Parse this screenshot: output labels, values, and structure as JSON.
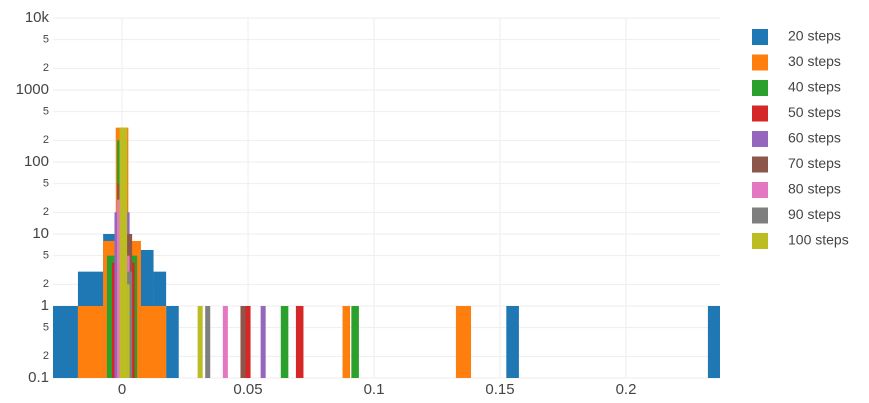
{
  "chart_data": {
    "type": "histogram",
    "log_y": true,
    "grid": true,
    "legend_position": "right",
    "xlim": [
      -0.0274,
      0.2373
    ],
    "ylim": [
      0.1,
      10000
    ],
    "xticks": [
      0,
      0.05,
      0.1,
      0.15,
      0.2
    ],
    "yticks": [
      {
        "value": 0.1,
        "label": "0.1"
      },
      {
        "value": 0.2,
        "label": "2"
      },
      {
        "value": 0.5,
        "label": "5"
      },
      1,
      {
        "value": 2,
        "label": "2"
      },
      {
        "value": 5,
        "label": "5"
      },
      10,
      {
        "value": 20,
        "label": "2"
      },
      {
        "value": 50,
        "label": "5"
      },
      100,
      {
        "value": 200,
        "label": "2"
      },
      {
        "value": 500,
        "label": "5"
      },
      1000,
      {
        "value": 2000,
        "label": "2"
      },
      {
        "value": 5000,
        "label": "5"
      },
      {
        "value": 10000,
        "label": "10k"
      }
    ],
    "series": [
      {
        "name": "20 steps",
        "color": "#1f77b4",
        "bins": [
          -0.0275,
          -0.0175,
          -0.0075,
          0.0025,
          0.0125,
          0.0175,
          0.0225,
          0.1525,
          0.1575,
          0.2325,
          0.2375
        ],
        "values": [
          1,
          3,
          10,
          6,
          3,
          1,
          0,
          1,
          0,
          1
        ]
      },
      {
        "name": "30 steps",
        "color": "#ff7f0e",
        "bins": [
          -0.0175,
          -0.0075,
          -0.0025,
          0.0025,
          0.0075,
          0.0175,
          0.0875,
          0.0905,
          0.1325,
          0.1385
        ],
        "values": [
          1,
          8,
          300,
          8,
          1,
          0,
          1,
          0,
          1
        ]
      },
      {
        "name": "40 steps",
        "color": "#2ca02c",
        "bins": [
          -0.006,
          -0.002,
          0.002,
          0.006,
          0.063,
          0.066,
          0.091,
          0.094
        ],
        "values": [
          5,
          200,
          5,
          0,
          1,
          0,
          1
        ]
      },
      {
        "name": "50 steps",
        "color": "#d62728",
        "bins": [
          -0.004,
          -0.001,
          0.002,
          0.005,
          0.048,
          0.051,
          0.069,
          0.072
        ],
        "values": [
          4,
          30,
          4,
          0,
          1,
          0,
          1
        ]
      },
      {
        "name": "60 steps",
        "color": "#9467bd",
        "bins": [
          -0.003,
          0,
          0.003,
          0.055,
          0.057
        ],
        "values": [
          20,
          20,
          0,
          1
        ]
      },
      {
        "name": "70 steps",
        "color": "#8c564b",
        "bins": [
          -0.002,
          0.001,
          0.004,
          0.047,
          0.049
        ],
        "values": [
          50,
          10,
          0,
          1
        ]
      },
      {
        "name": "80 steps",
        "color": "#e377c2",
        "bins": [
          -0.002,
          0.001,
          0.003,
          0.04,
          0.042
        ],
        "values": [
          30,
          5,
          0,
          1
        ]
      },
      {
        "name": "90 steps",
        "color": "#7f7f7f",
        "bins": [
          -0.001,
          0.002,
          0.004,
          0.033,
          0.035
        ],
        "values": [
          40,
          3,
          0,
          1
        ]
      },
      {
        "name": "100 steps",
        "color": "#bcbd22",
        "bins": [
          -0.001,
          0.002,
          0.003,
          0.03,
          0.032
        ],
        "values": [
          300,
          2,
          0,
          1
        ]
      }
    ]
  }
}
